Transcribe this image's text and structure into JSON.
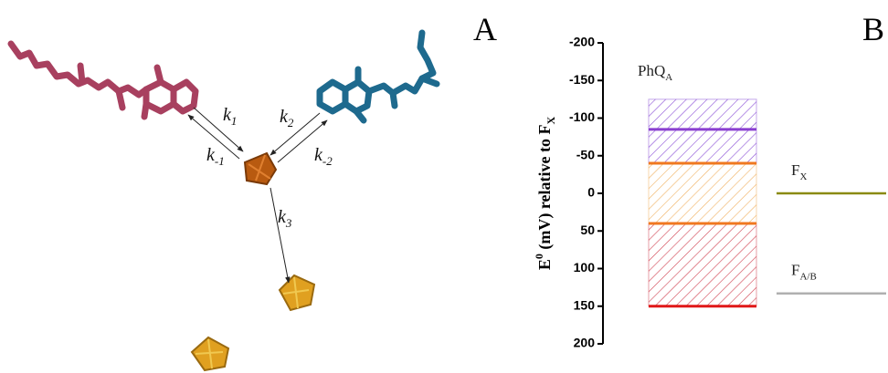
{
  "panel_a": {
    "label": "A",
    "rates": [
      {
        "base": "k",
        "sub": "1"
      },
      {
        "base": "k",
        "sub": "-1"
      },
      {
        "base": "k",
        "sub": "2"
      },
      {
        "base": "k",
        "sub": "-2"
      },
      {
        "base": "k",
        "sub": "3"
      }
    ]
  },
  "chart_data": {
    "type": "energy-levels",
    "panel_label": "B",
    "y_label": {
      "main": "E",
      "sup": "0",
      "rest": " (mV) relative to F",
      "sub": "X"
    },
    "ylim": [
      -200,
      200
    ],
    "inverted": true,
    "yticks": [
      -200,
      -150,
      -100,
      -50,
      0,
      50,
      100,
      150,
      200
    ],
    "ranges": [
      {
        "from": -125,
        "to": -40,
        "color": "#8a4fd6"
      },
      {
        "from": -40,
        "to": 40,
        "color": "#f0b060"
      },
      {
        "from": 40,
        "to": 150,
        "color": "#d04050"
      }
    ],
    "levels": [
      {
        "value": -85,
        "color": "#8a3fd0"
      },
      {
        "value": -40,
        "color": "#f07820"
      },
      {
        "value": 40,
        "color": "#f07820"
      },
      {
        "value": 150,
        "color": "#e01818"
      }
    ],
    "cofactors": [
      {
        "base": "PhQ",
        "sub": "A"
      },
      {
        "base": "F",
        "sub": "X",
        "value": 0,
        "color": "#8a8a10"
      },
      {
        "base": "F",
        "sub": "A/B",
        "value": 133,
        "color": "#b0b0b0"
      }
    ]
  }
}
